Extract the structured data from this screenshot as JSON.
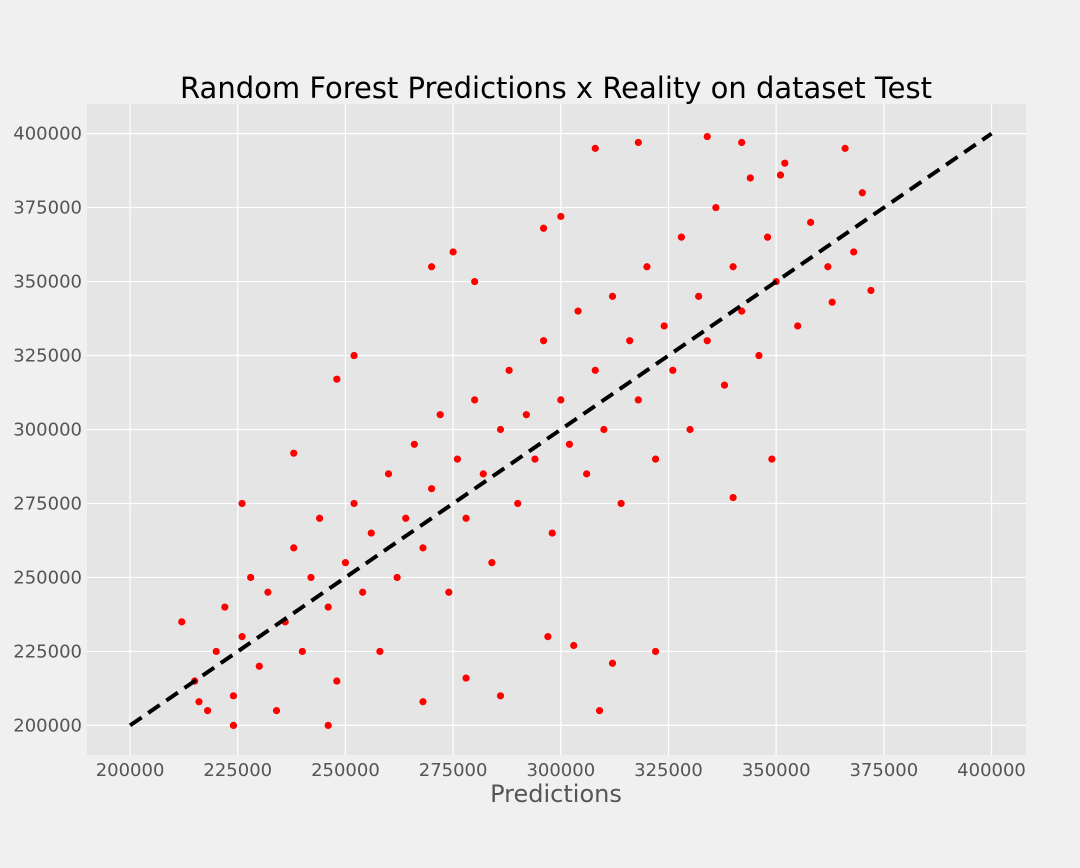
{
  "chart_data": {
    "type": "scatter",
    "title": "Random Forest Predictions x Reality on dataset Test",
    "xlabel": "Predictions",
    "ylabel": "",
    "xlim": [
      190000,
      408000
    ],
    "ylim": [
      190000,
      410000
    ],
    "xticks": [
      200000,
      225000,
      250000,
      275000,
      300000,
      325000,
      350000,
      375000,
      400000
    ],
    "yticks": [
      200000,
      225000,
      250000,
      275000,
      300000,
      325000,
      350000,
      375000,
      400000
    ],
    "x_tick_labels": [
      "200000",
      "225000",
      "250000",
      "275000",
      "300000",
      "325000",
      "350000",
      "375000",
      "400000"
    ],
    "y_tick_labels": [
      "200000",
      "225000",
      "250000",
      "275000",
      "300000",
      "325000",
      "350000",
      "375000",
      "400000"
    ],
    "grid": true,
    "style": "fivethirtyeight",
    "colors": {
      "points": "#ff0000",
      "reference_line": "#000000",
      "plot_background": "#e5e5e5",
      "figure_background": "#f0f0f0",
      "grid": "#ffffff"
    },
    "reference_line": {
      "style": "dashed",
      "points": [
        [
          200000,
          200000
        ],
        [
          400000,
          400000
        ]
      ]
    },
    "series": [
      {
        "points": [
          [
            212000,
            235000
          ],
          [
            215000,
            215000
          ],
          [
            218000,
            205000
          ],
          [
            220000,
            225000
          ],
          [
            222000,
            240000
          ],
          [
            224000,
            210000
          ],
          [
            226000,
            230000
          ],
          [
            228000,
            250000
          ],
          [
            230000,
            220000
          ],
          [
            232000,
            245000
          ],
          [
            234000,
            205000
          ],
          [
            236000,
            235000
          ],
          [
            238000,
            260000
          ],
          [
            240000,
            225000
          ],
          [
            242000,
            250000
          ],
          [
            244000,
            270000
          ],
          [
            246000,
            240000
          ],
          [
            248000,
            215000
          ],
          [
            250000,
            255000
          ],
          [
            252000,
            275000
          ],
          [
            254000,
            245000
          ],
          [
            256000,
            265000
          ],
          [
            258000,
            225000
          ],
          [
            260000,
            285000
          ],
          [
            262000,
            250000
          ],
          [
            264000,
            270000
          ],
          [
            266000,
            295000
          ],
          [
            268000,
            260000
          ],
          [
            270000,
            280000
          ],
          [
            272000,
            305000
          ],
          [
            274000,
            245000
          ],
          [
            276000,
            290000
          ],
          [
            278000,
            270000
          ],
          [
            280000,
            310000
          ],
          [
            282000,
            285000
          ],
          [
            284000,
            255000
          ],
          [
            286000,
            300000
          ],
          [
            288000,
            320000
          ],
          [
            290000,
            275000
          ],
          [
            292000,
            305000
          ],
          [
            294000,
            290000
          ],
          [
            296000,
            330000
          ],
          [
            298000,
            265000
          ],
          [
            300000,
            310000
          ],
          [
            302000,
            295000
          ],
          [
            304000,
            340000
          ],
          [
            306000,
            285000
          ],
          [
            308000,
            320000
          ],
          [
            310000,
            300000
          ],
          [
            312000,
            345000
          ],
          [
            314000,
            275000
          ],
          [
            316000,
            330000
          ],
          [
            318000,
            310000
          ],
          [
            320000,
            355000
          ],
          [
            322000,
            290000
          ],
          [
            324000,
            335000
          ],
          [
            326000,
            320000
          ],
          [
            328000,
            365000
          ],
          [
            330000,
            300000
          ],
          [
            332000,
            345000
          ],
          [
            334000,
            330000
          ],
          [
            336000,
            375000
          ],
          [
            338000,
            315000
          ],
          [
            340000,
            355000
          ],
          [
            342000,
            340000
          ],
          [
            344000,
            385000
          ],
          [
            346000,
            325000
          ],
          [
            348000,
            365000
          ],
          [
            350000,
            350000
          ],
          [
            352000,
            390000
          ],
          [
            355000,
            335000
          ],
          [
            358000,
            370000
          ],
          [
            362000,
            355000
          ],
          [
            366000,
            395000
          ],
          [
            372000,
            347000
          ],
          [
            270000,
            355000
          ],
          [
            275000,
            360000
          ],
          [
            280000,
            350000
          ],
          [
            296000,
            368000
          ],
          [
            300000,
            372000
          ],
          [
            308000,
            395000
          ],
          [
            318000,
            397000
          ],
          [
            334000,
            399000
          ],
          [
            342000,
            397000
          ],
          [
            351000,
            386000
          ],
          [
            363000,
            343000
          ],
          [
            368000,
            360000
          ],
          [
            370000,
            380000
          ],
          [
            349000,
            290000
          ],
          [
            340000,
            277000
          ],
          [
            309000,
            205000
          ],
          [
            322000,
            225000
          ],
          [
            312000,
            221000
          ],
          [
            297000,
            230000
          ],
          [
            303000,
            227000
          ],
          [
            286000,
            210000
          ],
          [
            278000,
            216000
          ],
          [
            252000,
            325000
          ],
          [
            248000,
            317000
          ],
          [
            238000,
            292000
          ],
          [
            226000,
            275000
          ],
          [
            268000,
            208000
          ],
          [
            246000,
            200000
          ],
          [
            224000,
            200000
          ],
          [
            216000,
            208000
          ]
        ]
      }
    ]
  }
}
